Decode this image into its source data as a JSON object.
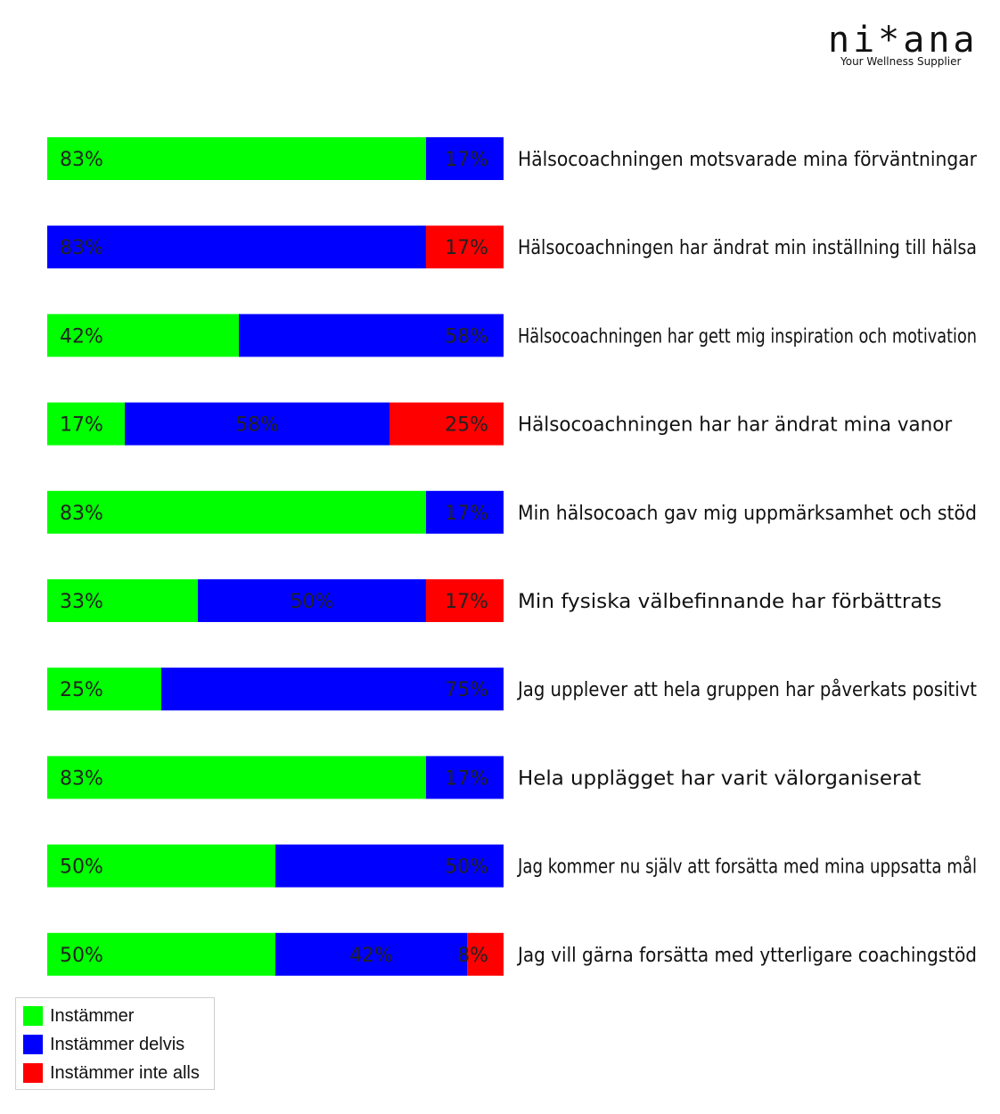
{
  "logo": {
    "text": "ni*ana",
    "tagline": "Your Wellness Supplier"
  },
  "chart_data": {
    "type": "bar",
    "orientation": "horizontal",
    "stacked": true,
    "percent_scale": [
      0,
      100
    ],
    "categories": [
      "Hälsocoachningen motsvarade mina förväntningar",
      "Hälsocoachningen har ändrat min inställning till hälsa",
      "Hälsocoachningen har gett mig inspiration och motivation",
      "Hälsocoachningen har har ändrat mina vanor",
      "Min hälsocoach gav mig uppmärksamhet och stöd",
      "Min fysiska välbefinnande har förbättrats",
      "Jag upplever att hela gruppen har påverkats positivt",
      "Hela upplägget har varit välorganiserat",
      "Jag kommer nu själv att forsätta med mina uppsatta mål",
      "Jag vill gärna forsätta med ytterligare coachingstöd"
    ],
    "series": [
      {
        "name": "Instämmer",
        "color": "#00ff00",
        "values": [
          83,
          0,
          42,
          17,
          83,
          33,
          25,
          83,
          50,
          50
        ]
      },
      {
        "name": "Instämmer delvis",
        "color": "#0000ff",
        "values": [
          17,
          83,
          58,
          58,
          17,
          50,
          75,
          17,
          50,
          42
        ]
      },
      {
        "name": "Instämmer inte alls",
        "color": "#ff0000",
        "values": [
          0,
          17,
          0,
          25,
          0,
          17,
          0,
          0,
          0,
          8
        ]
      }
    ],
    "legend_position": "bottom-left",
    "grid": false
  }
}
